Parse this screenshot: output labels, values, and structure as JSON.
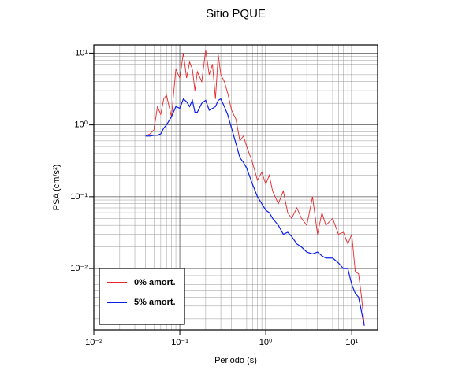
{
  "chart_data": {
    "type": "line",
    "title": "Sitio PQUE",
    "x_label": "Periodo (s)",
    "y_label": "PSA (cm/s²)",
    "log_x": true,
    "log_y": true,
    "grid": true,
    "minor_grid": true,
    "legend_position": "lower left",
    "xlim": [
      0.01,
      20
    ],
    "ylim": [
      0.0014,
      13
    ],
    "xticks": [
      {
        "value": 0.01,
        "label": "10⁻²"
      },
      {
        "value": 0.1,
        "label": "10⁻¹"
      },
      {
        "value": 1,
        "label": "10⁰"
      },
      {
        "value": 10,
        "label": "10¹"
      }
    ],
    "yticks": [
      {
        "value": 0.01,
        "label": "10⁻²"
      },
      {
        "value": 0.1,
        "label": "10⁻¹"
      },
      {
        "value": 1,
        "label": "10⁰"
      },
      {
        "value": 10,
        "label": "10¹"
      }
    ],
    "x": [
      0.04,
      0.045,
      0.05,
      0.055,
      0.06,
      0.065,
      0.07,
      0.08,
      0.09,
      0.1,
      0.11,
      0.12,
      0.13,
      0.14,
      0.15,
      0.16,
      0.18,
      0.2,
      0.22,
      0.24,
      0.26,
      0.28,
      0.3,
      0.33,
      0.36,
      0.4,
      0.45,
      0.5,
      0.55,
      0.6,
      0.7,
      0.8,
      0.9,
      1.0,
      1.1,
      1.2,
      1.4,
      1.6,
      1.8,
      2.0,
      2.3,
      2.6,
      3.0,
      3.5,
      4.0,
      4.5,
      5,
      6,
      7,
      8,
      9,
      10,
      11,
      12,
      13,
      14
    ],
    "series": [
      {
        "name": "0% amort.",
        "color": "#e8262a",
        "values": [
          0.7,
          0.75,
          0.85,
          1.8,
          1.4,
          2.3,
          2.6,
          1.3,
          6,
          4.5,
          10,
          4.5,
          7.5,
          6,
          3,
          5.5,
          4,
          11,
          5,
          7,
          2.3,
          9.5,
          5,
          4,
          2.8,
          1.6,
          1.2,
          0.6,
          0.7,
          0.5,
          0.3,
          0.17,
          0.22,
          0.15,
          0.2,
          0.12,
          0.08,
          0.12,
          0.06,
          0.05,
          0.07,
          0.05,
          0.04,
          0.1,
          0.03,
          0.06,
          0.04,
          0.05,
          0.03,
          0.032,
          0.022,
          0.03,
          0.009,
          0.0085,
          0.004,
          0.0016
        ]
      },
      {
        "name": "5% amort.",
        "color": "#0a1ef0",
        "values": [
          0.7,
          0.7,
          0.72,
          0.72,
          0.75,
          0.9,
          1.0,
          1.3,
          1.8,
          1.7,
          2.3,
          2.1,
          1.8,
          2.2,
          1.5,
          1.5,
          2.0,
          2.2,
          1.6,
          1.7,
          1.8,
          2.2,
          2.3,
          1.8,
          1.4,
          0.9,
          0.55,
          0.35,
          0.3,
          0.25,
          0.15,
          0.1,
          0.08,
          0.065,
          0.06,
          0.05,
          0.04,
          0.03,
          0.032,
          0.028,
          0.022,
          0.02,
          0.017,
          0.016,
          0.017,
          0.015,
          0.014,
          0.014,
          0.012,
          0.01,
          0.01,
          0.006,
          0.0045,
          0.004,
          0.0025,
          0.0016
        ]
      }
    ]
  }
}
